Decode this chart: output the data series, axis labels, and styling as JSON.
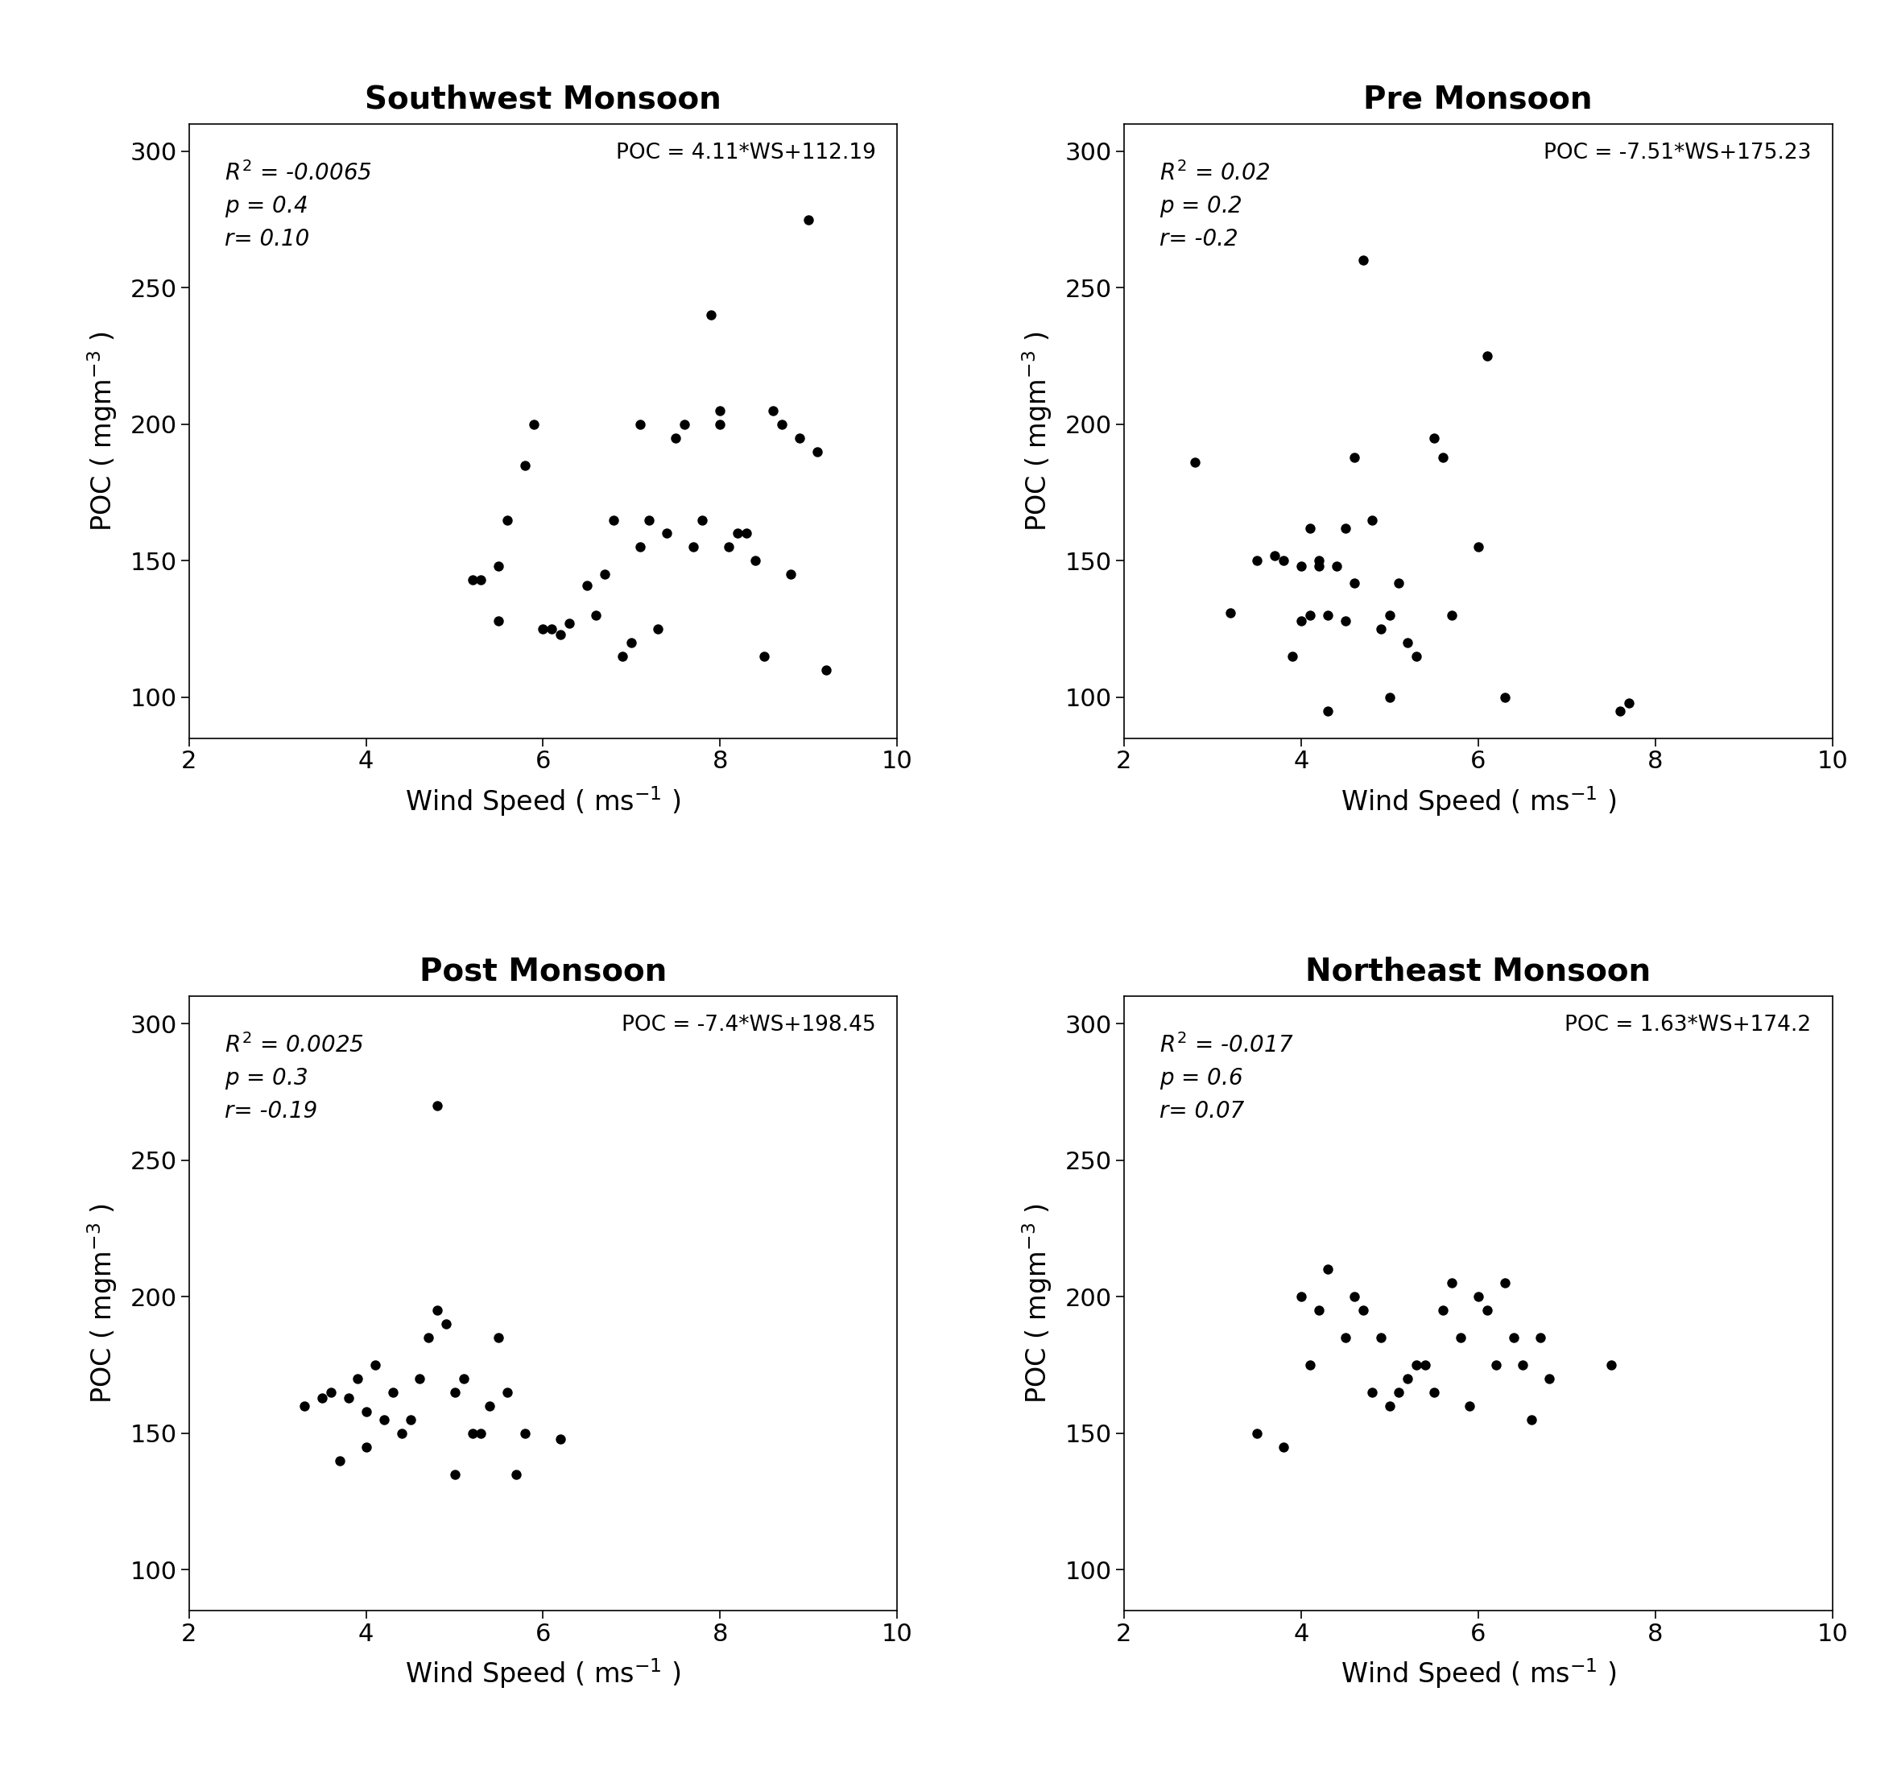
{
  "panels": [
    {
      "title": "Southwest Monsoon",
      "equation": "POC = 4.11*WS+112.19",
      "r2_label": "$R^2$",
      "r2_val": "-0.0065",
      "p_val": "0.4",
      "r_val": "0.10",
      "x": [
        5.2,
        5.3,
        5.5,
        5.5,
        5.6,
        5.8,
        5.9,
        6.0,
        6.1,
        6.2,
        6.3,
        6.5,
        6.6,
        6.7,
        6.8,
        6.9,
        7.0,
        7.1,
        7.1,
        7.2,
        7.3,
        7.4,
        7.5,
        7.6,
        7.7,
        7.8,
        7.9,
        8.0,
        8.0,
        8.1,
        8.2,
        8.3,
        8.4,
        8.5,
        8.6,
        8.7,
        8.8,
        8.9,
        9.0,
        9.1,
        9.2
      ],
      "y": [
        143,
        143,
        148,
        128,
        165,
        185,
        200,
        125,
        125,
        123,
        127,
        141,
        130,
        145,
        165,
        115,
        120,
        155,
        200,
        165,
        125,
        160,
        195,
        200,
        155,
        165,
        240,
        200,
        205,
        155,
        160,
        160,
        150,
        115,
        205,
        200,
        145,
        195,
        275,
        190,
        110
      ],
      "xlim": [
        2,
        10
      ],
      "ylim": [
        85,
        310
      ],
      "xticks": [
        2,
        4,
        6,
        8,
        10
      ],
      "yticks": [
        100,
        150,
        200,
        250,
        300
      ]
    },
    {
      "title": "Pre Monsoon",
      "equation": "POC = -7.51*WS+175.23",
      "r2_label": "$R^2$",
      "r2_val": "0.02",
      "p_val": "0.2",
      "r_val": "-0.2",
      "x": [
        2.8,
        3.2,
        3.5,
        3.7,
        3.8,
        3.9,
        4.0,
        4.0,
        4.1,
        4.1,
        4.2,
        4.2,
        4.3,
        4.3,
        4.4,
        4.5,
        4.5,
        4.6,
        4.6,
        4.7,
        4.8,
        4.9,
        5.0,
        5.0,
        5.1,
        5.2,
        5.3,
        5.5,
        5.6,
        5.7,
        6.0,
        6.1,
        6.3,
        7.6,
        7.7
      ],
      "y": [
        186,
        131,
        150,
        152,
        150,
        115,
        148,
        128,
        162,
        130,
        150,
        148,
        95,
        130,
        148,
        128,
        162,
        142,
        188,
        260,
        165,
        125,
        100,
        130,
        142,
        120,
        115,
        195,
        188,
        130,
        155,
        225,
        100,
        95,
        98
      ],
      "xlim": [
        2,
        10
      ],
      "ylim": [
        85,
        310
      ],
      "xticks": [
        2,
        4,
        6,
        8,
        10
      ],
      "yticks": [
        100,
        150,
        200,
        250,
        300
      ]
    },
    {
      "title": "Post Monsoon",
      "equation": "POC = -7.4*WS+198.45",
      "r2_label": "$R^2$",
      "r2_val": "0.0025",
      "p_val": "0.3",
      "r_val": "-0.19",
      "x": [
        3.3,
        3.5,
        3.6,
        3.7,
        3.8,
        3.9,
        4.0,
        4.0,
        4.1,
        4.2,
        4.3,
        4.4,
        4.5,
        4.6,
        4.7,
        4.8,
        4.9,
        5.0,
        5.0,
        5.1,
        5.2,
        5.3,
        5.4,
        5.5,
        5.6,
        5.7,
        5.8,
        6.2,
        4.8
      ],
      "y": [
        160,
        163,
        165,
        140,
        163,
        170,
        158,
        145,
        175,
        155,
        165,
        150,
        155,
        170,
        185,
        195,
        190,
        135,
        165,
        170,
        150,
        150,
        160,
        185,
        165,
        135,
        150,
        148,
        270
      ],
      "xlim": [
        2,
        10
      ],
      "ylim": [
        85,
        310
      ],
      "xticks": [
        2,
        4,
        6,
        8,
        10
      ],
      "yticks": [
        100,
        150,
        200,
        250,
        300
      ]
    },
    {
      "title": "Northeast Monsoon",
      "equation": "POC = 1.63*WS+174.2",
      "r2_label": "$R^2$",
      "r2_val": "-0.017",
      "p_val": "0.6",
      "r_val": "0.07",
      "x": [
        3.5,
        3.8,
        4.0,
        4.1,
        4.2,
        4.3,
        4.5,
        4.6,
        4.7,
        4.8,
        4.9,
        5.0,
        5.1,
        5.2,
        5.3,
        5.4,
        5.5,
        5.6,
        5.7,
        5.8,
        5.9,
        6.0,
        6.1,
        6.2,
        6.3,
        6.4,
        6.5,
        6.6,
        6.7,
        6.8,
        7.5
      ],
      "y": [
        150,
        145,
        200,
        175,
        195,
        210,
        185,
        200,
        195,
        165,
        185,
        160,
        165,
        170,
        175,
        175,
        165,
        195,
        205,
        185,
        160,
        200,
        195,
        175,
        205,
        185,
        175,
        155,
        185,
        170,
        175
      ],
      "xlim": [
        2,
        10
      ],
      "ylim": [
        85,
        310
      ],
      "xticks": [
        2,
        4,
        6,
        8,
        10
      ],
      "yticks": [
        100,
        150,
        200,
        250,
        300
      ]
    }
  ],
  "background_color": "#ffffff",
  "dot_color": "#000000",
  "dot_size": 80,
  "title_fontsize": 28,
  "label_fontsize": 24,
  "tick_fontsize": 22,
  "annotation_fontsize": 20,
  "equation_fontsize": 19
}
